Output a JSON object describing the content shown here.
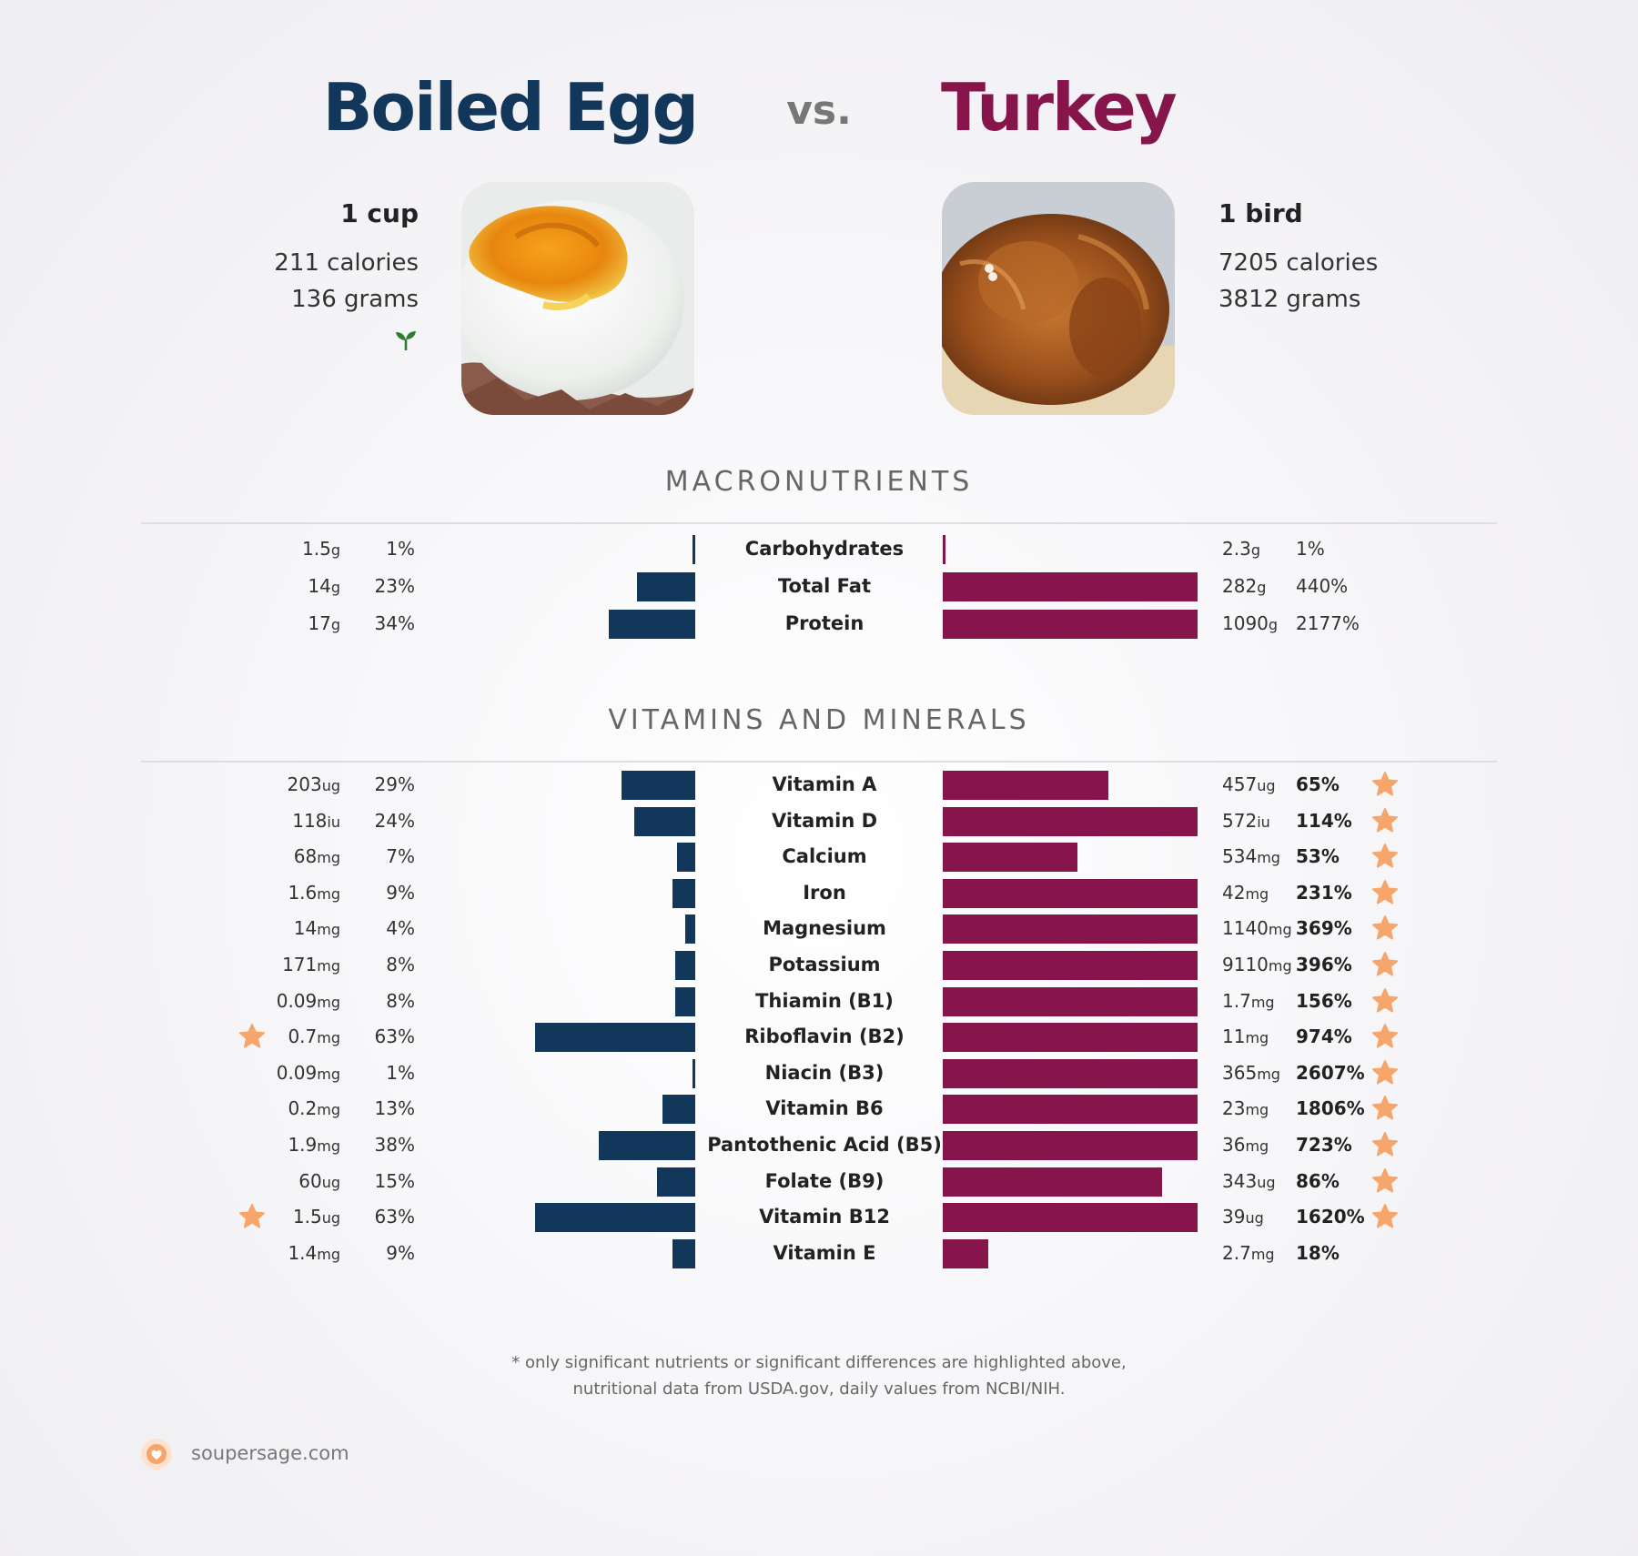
{
  "header": {
    "left_title": "Boiled Egg",
    "vs": "vs.",
    "right_title": "Turkey"
  },
  "left_food": {
    "serving": "1 cup",
    "calories": "211 calories",
    "grams": "136 grams",
    "badge_icon": "sprout-icon",
    "photo_icon": "boiled-egg-photo"
  },
  "right_food": {
    "serving": "1 bird",
    "calories": "7205 calories",
    "grams": "3812 grams",
    "photo_icon": "roast-turkey-photo"
  },
  "sections": {
    "macros_title": "MACRONUTRIENTS",
    "vitamins_title": "VITAMINS AND MINERALS"
  },
  "colors": {
    "left": "#13365b",
    "right": "#85154a",
    "star": "#f6a66a"
  },
  "chart_data": [
    {
      "type": "bar",
      "title": "MACRONUTRIENTS",
      "series": [
        {
          "name": "Boiled Egg",
          "values": [
            1,
            23,
            34
          ]
        },
        {
          "name": "Turkey",
          "values": [
            1,
            440,
            2177
          ]
        }
      ],
      "categories": [
        "Carbohydrates",
        "Total Fat",
        "Protein"
      ],
      "rows": [
        {
          "name": "Carbohydrates",
          "l_amt": "1.5",
          "l_unit": "g",
          "l_pct": "1%",
          "l_val": 1,
          "r_amt": "2.3",
          "r_unit": "g",
          "r_pct": "1%",
          "r_val": 1,
          "l_star": false,
          "r_star": false,
          "r_bold": false
        },
        {
          "name": "Total Fat",
          "l_amt": "14",
          "l_unit": "g",
          "l_pct": "23%",
          "l_val": 23,
          "r_amt": "282",
          "r_unit": "g",
          "r_pct": "440%",
          "r_val": 440,
          "l_star": false,
          "r_star": false,
          "r_bold": false
        },
        {
          "name": "Protein",
          "l_amt": "17",
          "l_unit": "g",
          "l_pct": "34%",
          "l_val": 34,
          "r_amt": "1090",
          "r_unit": "g",
          "r_pct": "2177%",
          "r_val": 2177,
          "l_star": false,
          "r_star": false,
          "r_bold": false
        }
      ]
    },
    {
      "type": "bar",
      "title": "VITAMINS AND MINERALS",
      "series": [
        {
          "name": "Boiled Egg",
          "values": [
            29,
            24,
            7,
            9,
            4,
            8,
            8,
            63,
            1,
            13,
            38,
            15,
            63,
            9
          ]
        },
        {
          "name": "Turkey",
          "values": [
            65,
            114,
            53,
            231,
            369,
            396,
            156,
            974,
            2607,
            1806,
            723,
            86,
            1620,
            18
          ]
        }
      ],
      "categories": [
        "Vitamin A",
        "Vitamin D",
        "Calcium",
        "Iron",
        "Magnesium",
        "Potassium",
        "Thiamin (B1)",
        "Riboflavin (B2)",
        "Niacin (B3)",
        "Vitamin B6",
        "Pantothenic Acid (B5)",
        "Folate (B9)",
        "Vitamin B12",
        "Vitamin E"
      ],
      "rows": [
        {
          "name": "Vitamin A",
          "l_amt": "203",
          "l_unit": "ug",
          "l_pct": "29%",
          "l_val": 29,
          "r_amt": "457",
          "r_unit": "ug",
          "r_pct": "65%",
          "r_val": 65,
          "l_star": false,
          "r_star": true,
          "r_bold": true
        },
        {
          "name": "Vitamin D",
          "l_amt": "118",
          "l_unit": "iu",
          "l_pct": "24%",
          "l_val": 24,
          "r_amt": "572",
          "r_unit": "iu",
          "r_pct": "114%",
          "r_val": 114,
          "l_star": false,
          "r_star": true,
          "r_bold": true
        },
        {
          "name": "Calcium",
          "l_amt": "68",
          "l_unit": "mg",
          "l_pct": "7%",
          "l_val": 7,
          "r_amt": "534",
          "r_unit": "mg",
          "r_pct": "53%",
          "r_val": 53,
          "l_star": false,
          "r_star": true,
          "r_bold": true
        },
        {
          "name": "Iron",
          "l_amt": "1.6",
          "l_unit": "mg",
          "l_pct": "9%",
          "l_val": 9,
          "r_amt": "42",
          "r_unit": "mg",
          "r_pct": "231%",
          "r_val": 231,
          "l_star": false,
          "r_star": true,
          "r_bold": true
        },
        {
          "name": "Magnesium",
          "l_amt": "14",
          "l_unit": "mg",
          "l_pct": "4%",
          "l_val": 4,
          "r_amt": "1140",
          "r_unit": "mg",
          "r_pct": "369%",
          "r_val": 369,
          "l_star": false,
          "r_star": true,
          "r_bold": true
        },
        {
          "name": "Potassium",
          "l_amt": "171",
          "l_unit": "mg",
          "l_pct": "8%",
          "l_val": 8,
          "r_amt": "9110",
          "r_unit": "mg",
          "r_pct": "396%",
          "r_val": 396,
          "l_star": false,
          "r_star": true,
          "r_bold": true
        },
        {
          "name": "Thiamin (B1)",
          "l_amt": "0.09",
          "l_unit": "mg",
          "l_pct": "8%",
          "l_val": 8,
          "r_amt": "1.7",
          "r_unit": "mg",
          "r_pct": "156%",
          "r_val": 156,
          "l_star": false,
          "r_star": true,
          "r_bold": true
        },
        {
          "name": "Riboflavin (B2)",
          "l_amt": "0.7",
          "l_unit": "mg",
          "l_pct": "63%",
          "l_val": 63,
          "r_amt": "11",
          "r_unit": "mg",
          "r_pct": "974%",
          "r_val": 974,
          "l_star": true,
          "r_star": true,
          "r_bold": true
        },
        {
          "name": "Niacin (B3)",
          "l_amt": "0.09",
          "l_unit": "mg",
          "l_pct": "1%",
          "l_val": 1,
          "r_amt": "365",
          "r_unit": "mg",
          "r_pct": "2607%",
          "r_val": 2607,
          "l_star": false,
          "r_star": true,
          "r_bold": true
        },
        {
          "name": "Vitamin B6",
          "l_amt": "0.2",
          "l_unit": "mg",
          "l_pct": "13%",
          "l_val": 13,
          "r_amt": "23",
          "r_unit": "mg",
          "r_pct": "1806%",
          "r_val": 1806,
          "l_star": false,
          "r_star": true,
          "r_bold": true
        },
        {
          "name": "Pantothenic Acid (B5)",
          "l_amt": "1.9",
          "l_unit": "mg",
          "l_pct": "38%",
          "l_val": 38,
          "r_amt": "36",
          "r_unit": "mg",
          "r_pct": "723%",
          "r_val": 723,
          "l_star": false,
          "r_star": true,
          "r_bold": true
        },
        {
          "name": "Folate (B9)",
          "l_amt": "60",
          "l_unit": "ug",
          "l_pct": "15%",
          "l_val": 15,
          "r_amt": "343",
          "r_unit": "ug",
          "r_pct": "86%",
          "r_val": 86,
          "l_star": false,
          "r_star": true,
          "r_bold": true
        },
        {
          "name": "Vitamin B12",
          "l_amt": "1.5",
          "l_unit": "ug",
          "l_pct": "63%",
          "l_val": 63,
          "r_amt": "39",
          "r_unit": "ug",
          "r_pct": "1620%",
          "r_val": 1620,
          "l_star": true,
          "r_star": true,
          "r_bold": true
        },
        {
          "name": "Vitamin E",
          "l_amt": "1.4",
          "l_unit": "mg",
          "l_pct": "9%",
          "l_val": 9,
          "r_amt": "2.7",
          "r_unit": "mg",
          "r_pct": "18%",
          "r_val": 18,
          "l_star": false,
          "r_star": false,
          "r_bold": true
        }
      ]
    }
  ],
  "footer": {
    "note_line1": "* only significant nutrients or significant differences are highlighted above,",
    "note_line2": "nutritional data from USDA.gov, daily values from NCBI/NIH.",
    "brand": "soupersage.com",
    "brand_icon": "soupersage-logo-icon"
  }
}
